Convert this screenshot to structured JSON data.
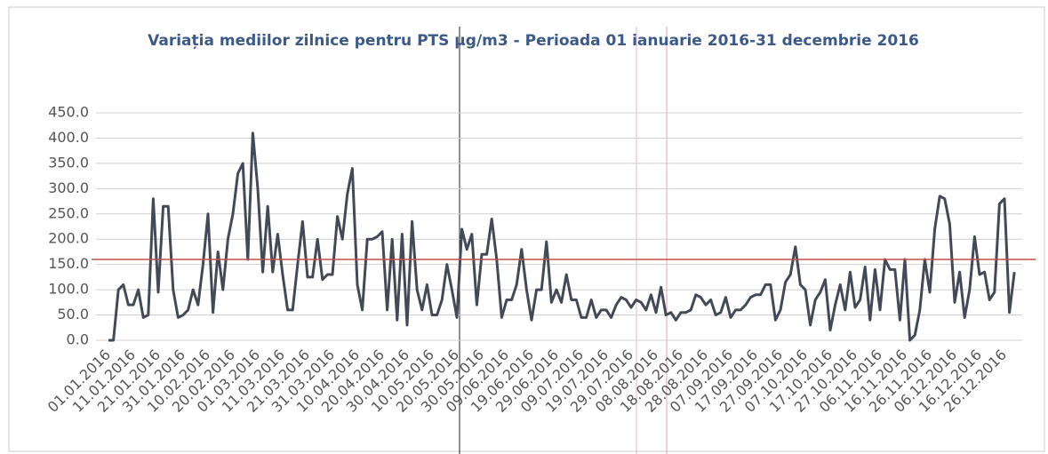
{
  "chart_data": {
    "type": "line",
    "title": "Variația mediilor zilnice pentru PTS µg/m3 - Perioada 01 ianuarie 2016-31 decembrie 2016",
    "categories": [
      "01.01.2016",
      null,
      null,
      null,
      null,
      "11.01.2016",
      null,
      null,
      null,
      null,
      "21.01.2016",
      null,
      null,
      null,
      null,
      "31.01.2016",
      null,
      null,
      null,
      null,
      "10.02.2016",
      null,
      null,
      null,
      null,
      "20.02.2016",
      null,
      null,
      null,
      null,
      "01.03.2016",
      null,
      null,
      null,
      null,
      "11.03.2016",
      null,
      null,
      null,
      null,
      "21.03.2016",
      null,
      null,
      null,
      null,
      "31.03.2016",
      null,
      null,
      null,
      null,
      "10.04.2016",
      null,
      null,
      null,
      null,
      "20.04.2016",
      null,
      null,
      null,
      null,
      "30.04.2016",
      null,
      null,
      null,
      null,
      "10.05.2016",
      null,
      null,
      null,
      null,
      "20.05.2016",
      null,
      null,
      null,
      null,
      "30.05.2016",
      null,
      null,
      null,
      null,
      "09.06.2016",
      null,
      null,
      null,
      null,
      "19.06.2016",
      null,
      null,
      null,
      null,
      "29.06.2016",
      null,
      null,
      null,
      null,
      "09.07.2016",
      null,
      null,
      null,
      null,
      "19.07.2016",
      null,
      null,
      null,
      null,
      "29.07.2016",
      null,
      null,
      null,
      null,
      "08.08.2016",
      null,
      null,
      null,
      null,
      "18.08.2016",
      null,
      null,
      null,
      null,
      "28.08.2016",
      null,
      null,
      null,
      null,
      "07.09.2016",
      null,
      null,
      null,
      null,
      "17.09.2016",
      null,
      null,
      null,
      null,
      "27.09.2016",
      null,
      null,
      null,
      null,
      "07.10.2016",
      null,
      null,
      null,
      null,
      "17.10.2016",
      null,
      null,
      null,
      null,
      "27.10.2016",
      null,
      null,
      null,
      null,
      "06.11.2016",
      null,
      null,
      null,
      null,
      "16.11.2016",
      null,
      null,
      null,
      null,
      "26.11.2016",
      null,
      null,
      null,
      null,
      "06.12.2016",
      null,
      null,
      null,
      null,
      "16.12.2016",
      null,
      null,
      null,
      null,
      "26.12.2016",
      null,
      null
    ],
    "series": [
      {
        "name": "PTS",
        "color": "#434a57",
        "values": [
          0,
          0,
          100,
          110,
          70,
          70,
          100,
          45,
          50,
          280,
          95,
          265,
          265,
          100,
          45,
          50,
          60,
          100,
          70,
          150,
          250,
          55,
          175,
          100,
          200,
          250,
          330,
          350,
          160,
          410,
          300,
          135,
          265,
          135,
          210,
          130,
          60,
          60,
          150,
          235,
          125,
          125,
          200,
          120,
          130,
          130,
          245,
          200,
          290,
          340,
          110,
          60,
          200,
          200,
          205,
          215,
          60,
          200,
          40,
          210,
          30,
          235,
          100,
          60,
          110,
          50,
          50,
          80,
          150,
          100,
          45,
          220,
          180,
          210,
          70,
          170,
          170,
          240,
          160,
          45,
          80,
          80,
          110,
          180,
          100,
          40,
          100,
          100,
          195,
          75,
          100,
          75,
          130,
          80,
          80,
          45,
          45,
          80,
          45,
          60,
          60,
          45,
          70,
          85,
          80,
          65,
          80,
          75,
          60,
          90,
          55,
          105,
          50,
          55,
          40,
          55,
          55,
          60,
          90,
          85,
          70,
          80,
          50,
          55,
          85,
          45,
          60,
          60,
          70,
          85,
          90,
          90,
          110,
          110,
          40,
          60,
          115,
          130,
          185,
          110,
          100,
          30,
          80,
          95,
          120,
          20,
          70,
          110,
          60,
          135,
          65,
          80,
          145,
          40,
          140,
          60,
          160,
          140,
          140,
          40,
          160,
          0,
          10,
          60,
          160,
          95,
          220,
          285,
          280,
          230,
          75,
          135,
          45,
          100,
          205,
          130,
          135,
          80,
          95,
          270,
          280,
          55,
          135
        ]
      }
    ],
    "ylim": [
      0,
      450
    ],
    "yticks": [
      {
        "value": 0,
        "label": "0.0"
      },
      {
        "value": 50,
        "label": "50.0"
      },
      {
        "value": 100,
        "label": "100.0"
      },
      {
        "value": 150,
        "label": "150.0"
      },
      {
        "value": 200,
        "label": "200.0"
      },
      {
        "value": 250,
        "label": "250.0"
      },
      {
        "value": 300,
        "label": "300.0"
      },
      {
        "value": 350,
        "label": "350.0"
      },
      {
        "value": 400,
        "label": "400.0"
      },
      {
        "value": 450,
        "label": "450.0"
      }
    ],
    "grid": true,
    "threshold": {
      "value": 160,
      "color": "#c0504d"
    }
  }
}
